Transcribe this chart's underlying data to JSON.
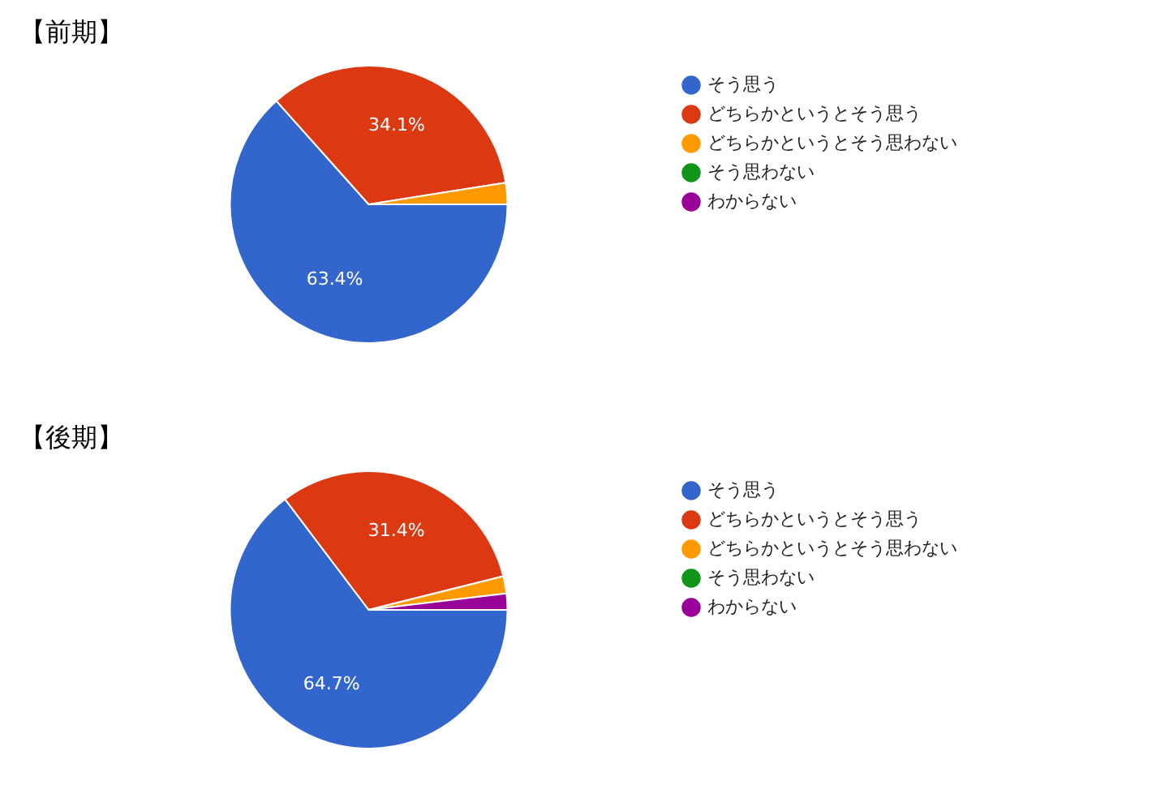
{
  "chart_data": [
    {
      "type": "pie",
      "title": "【前期】",
      "categories": [
        "そう思う",
        "どちらかというとそう思う",
        "どちらかというとそう思わない",
        "そう思わない",
        "わからない"
      ],
      "values": [
        63.4,
        34.1,
        2.5,
        0,
        0
      ],
      "colors": [
        "#3366cc",
        "#dc3912",
        "#ff9900",
        "#109618",
        "#990099"
      ],
      "value_labels": [
        "63.4%",
        "34.1%",
        null,
        null,
        null
      ],
      "legend": "right"
    },
    {
      "type": "pie",
      "title": "【後期】",
      "categories": [
        "そう思う",
        "どちらかというとそう思う",
        "どちらかというとそう思わない",
        "そう思わない",
        "わからない"
      ],
      "values": [
        64.7,
        31.4,
        2.0,
        0,
        1.9
      ],
      "colors": [
        "#3366cc",
        "#dc3912",
        "#ff9900",
        "#109618",
        "#990099"
      ],
      "value_labels": [
        "64.7%",
        "31.4%",
        null,
        null,
        null
      ],
      "legend": "right"
    }
  ]
}
